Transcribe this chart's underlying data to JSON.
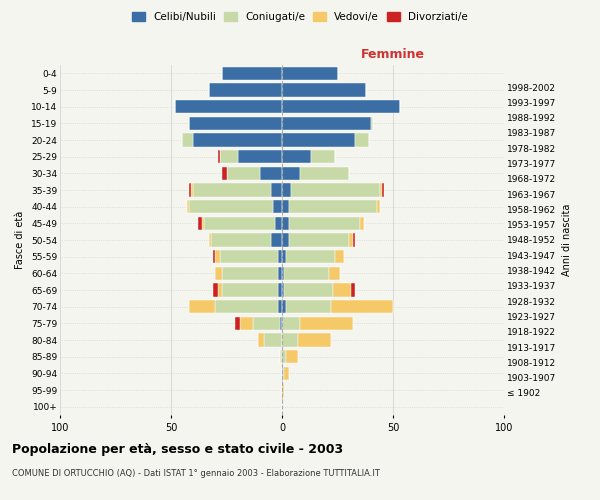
{
  "age_groups": [
    "100+",
    "95-99",
    "90-94",
    "85-89",
    "80-84",
    "75-79",
    "70-74",
    "65-69",
    "60-64",
    "55-59",
    "50-54",
    "45-49",
    "40-44",
    "35-39",
    "30-34",
    "25-29",
    "20-24",
    "15-19",
    "10-14",
    "5-9",
    "0-4"
  ],
  "birth_years": [
    "≤ 1902",
    "1903-1907",
    "1908-1912",
    "1913-1917",
    "1918-1922",
    "1923-1927",
    "1928-1932",
    "1933-1937",
    "1938-1942",
    "1943-1947",
    "1948-1952",
    "1953-1957",
    "1958-1962",
    "1963-1967",
    "1968-1972",
    "1973-1977",
    "1978-1982",
    "1983-1987",
    "1988-1992",
    "1993-1997",
    "1998-2002"
  ],
  "males": {
    "celibi": [
      0,
      0,
      0,
      0,
      0,
      1,
      2,
      2,
      2,
      2,
      5,
      3,
      4,
      5,
      10,
      20,
      40,
      42,
      48,
      33,
      27
    ],
    "coniugati": [
      0,
      0,
      0,
      1,
      8,
      12,
      28,
      25,
      25,
      26,
      27,
      32,
      38,
      35,
      15,
      8,
      5,
      0,
      0,
      0,
      0
    ],
    "vedovi": [
      0,
      0,
      0,
      0,
      3,
      6,
      12,
      2,
      3,
      2,
      1,
      1,
      1,
      1,
      0,
      0,
      0,
      0,
      0,
      0,
      0
    ],
    "divorziati": [
      0,
      0,
      0,
      0,
      0,
      2,
      0,
      2,
      0,
      1,
      0,
      2,
      0,
      1,
      2,
      1,
      0,
      0,
      0,
      0,
      0
    ]
  },
  "females": {
    "nubili": [
      0,
      0,
      0,
      0,
      0,
      0,
      2,
      1,
      1,
      2,
      3,
      3,
      3,
      4,
      8,
      13,
      33,
      40,
      53,
      38,
      25
    ],
    "coniugate": [
      0,
      0,
      1,
      2,
      7,
      8,
      20,
      22,
      20,
      22,
      27,
      32,
      40,
      40,
      22,
      11,
      6,
      1,
      0,
      0,
      0
    ],
    "vedove": [
      0,
      1,
      2,
      5,
      15,
      24,
      28,
      8,
      5,
      4,
      2,
      2,
      1,
      1,
      0,
      0,
      0,
      0,
      0,
      0,
      0
    ],
    "divorziate": [
      0,
      0,
      0,
      0,
      0,
      0,
      0,
      2,
      0,
      0,
      1,
      0,
      0,
      1,
      0,
      0,
      0,
      0,
      0,
      0,
      0
    ]
  },
  "colors": {
    "celibi": "#3a6ea5",
    "coniugati": "#c8d9a8",
    "vedovi": "#f5c968",
    "divorziati": "#cc2222"
  },
  "title": "Popolazione per età, sesso e stato civile - 2003",
  "subtitle": "COMUNE DI ORTUCCHIO (AQ) - Dati ISTAT 1° gennaio 2003 - Elaborazione TUTTITALIA.IT",
  "ylabel_left": "Fasce di età",
  "ylabel_right": "Anni di nascita",
  "xlabel_right": "Femmine",
  "xlim": 100,
  "background_color": "#f5f5f0",
  "grid_color": "#cccccc"
}
